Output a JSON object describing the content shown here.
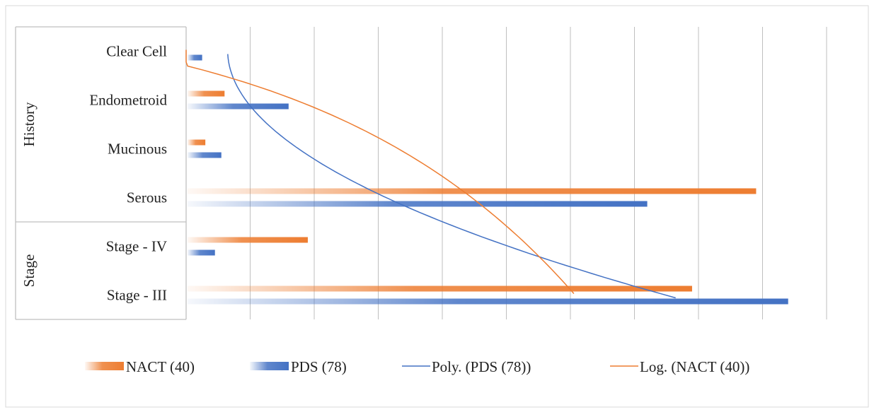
{
  "chart_data": {
    "type": "bar",
    "orientation": "horizontal",
    "groups": [
      {
        "label": "History",
        "categories": [
          "Clear Cell",
          "Endometroid",
          "Mucinous",
          "Serous"
        ]
      },
      {
        "label": "Stage",
        "categories": [
          "Stage - IV",
          "Stage - III"
        ]
      }
    ],
    "categories": [
      "Clear Cell",
      "Endometroid",
      "Mucinous",
      "Serous",
      "Stage - IV",
      "Stage - III"
    ],
    "series": [
      {
        "name": "NACT (40)",
        "color": "#ED7D31",
        "values": [
          0,
          0.6,
          0.3,
          8.9,
          1.9,
          7.9
        ]
      },
      {
        "name": "PDS (78)",
        "color": "#4472C4",
        "values": [
          0.25,
          1.6,
          0.55,
          7.2,
          0.45,
          9.4
        ]
      }
    ],
    "trendlines": [
      {
        "name": "Poly. (PDS (78))",
        "type": "polynomial",
        "color": "#4472C4"
      },
      {
        "name": "Log. (NACT (40))",
        "type": "logarithmic",
        "color": "#ED7D31"
      }
    ],
    "xlim": [
      0,
      10
    ],
    "grid": true,
    "legend_position": "bottom"
  }
}
